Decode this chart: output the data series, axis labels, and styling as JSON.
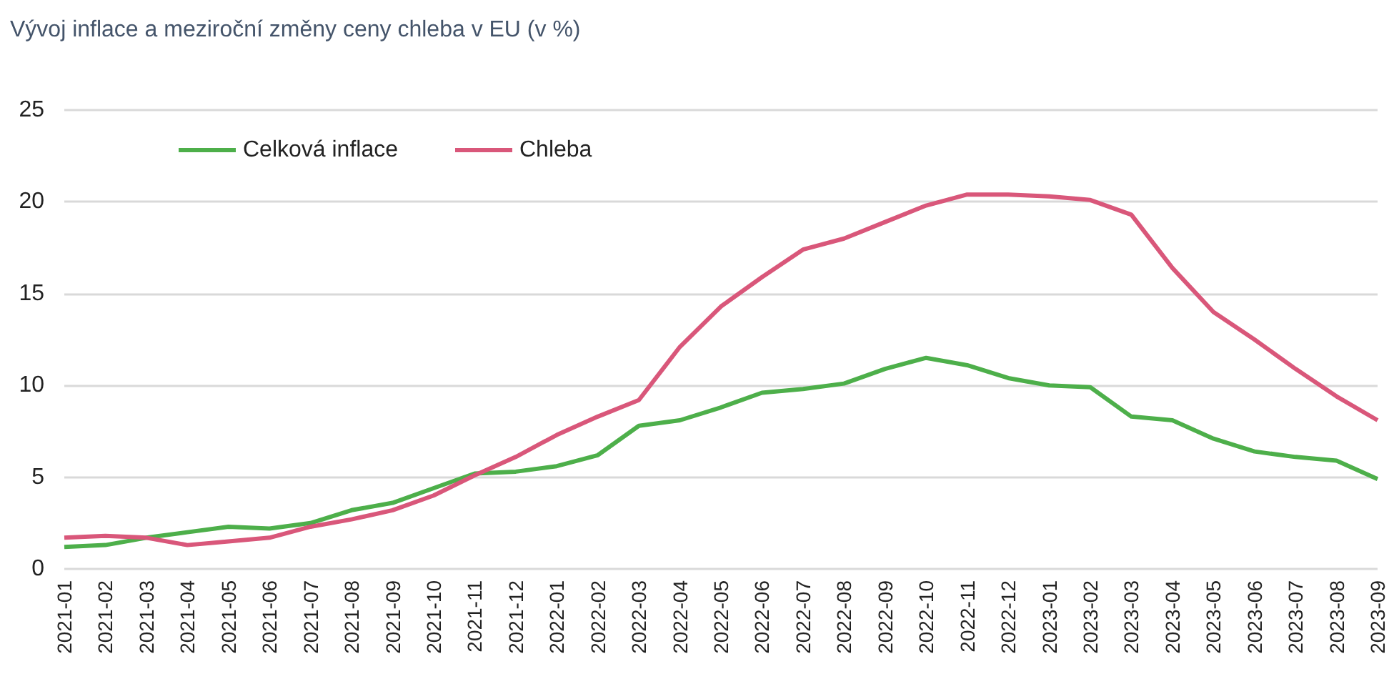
{
  "chart_data": {
    "type": "line",
    "title": "Vývoj inflace a meziroční změny ceny chleba v EU (v %)",
    "categories": [
      "2021-01",
      "2021-02",
      "2021-03",
      "2021-04",
      "2021-05",
      "2021-06",
      "2021-07",
      "2021-08",
      "2021-09",
      "2021-10",
      "2021-11",
      "2021-12",
      "2022-01",
      "2022-02",
      "2022-03",
      "2022-04",
      "2022-05",
      "2022-06",
      "2022-07",
      "2022-08",
      "2022-09",
      "2022-10",
      "2022-11",
      "2022-12",
      "2023-01",
      "2023-02",
      "2023-03",
      "2023-04",
      "2023-05",
      "2023-06",
      "2023-07",
      "2023-08",
      "2023-09"
    ],
    "series": [
      {
        "name": "Celková inflace",
        "color": "#4daf4a",
        "values": [
          1.2,
          1.3,
          1.7,
          2.0,
          2.3,
          2.2,
          2.5,
          3.2,
          3.6,
          4.4,
          5.2,
          5.3,
          5.6,
          6.2,
          7.8,
          8.1,
          8.8,
          9.6,
          9.8,
          10.1,
          10.9,
          11.5,
          11.1,
          10.4,
          10.0,
          9.9,
          8.3,
          8.1,
          7.1,
          6.4,
          6.1,
          5.9,
          4.9
        ]
      },
      {
        "name": "Chleba",
        "color": "#d9577a",
        "values": [
          1.7,
          1.8,
          1.7,
          1.3,
          1.5,
          1.7,
          2.3,
          2.7,
          3.2,
          4.0,
          5.1,
          6.1,
          7.3,
          8.3,
          9.2,
          12.1,
          14.3,
          15.9,
          17.4,
          18.0,
          18.9,
          19.8,
          20.4,
          20.4,
          20.3,
          20.1,
          19.3,
          16.4,
          14.0,
          12.5,
          10.9,
          9.4,
          8.1
        ]
      }
    ],
    "ylim": [
      0,
      25
    ],
    "yticks": [
      0,
      5,
      10,
      15,
      20,
      25
    ],
    "grid": "y",
    "legend": "top left",
    "marker": "none",
    "line_style": "solid"
  }
}
